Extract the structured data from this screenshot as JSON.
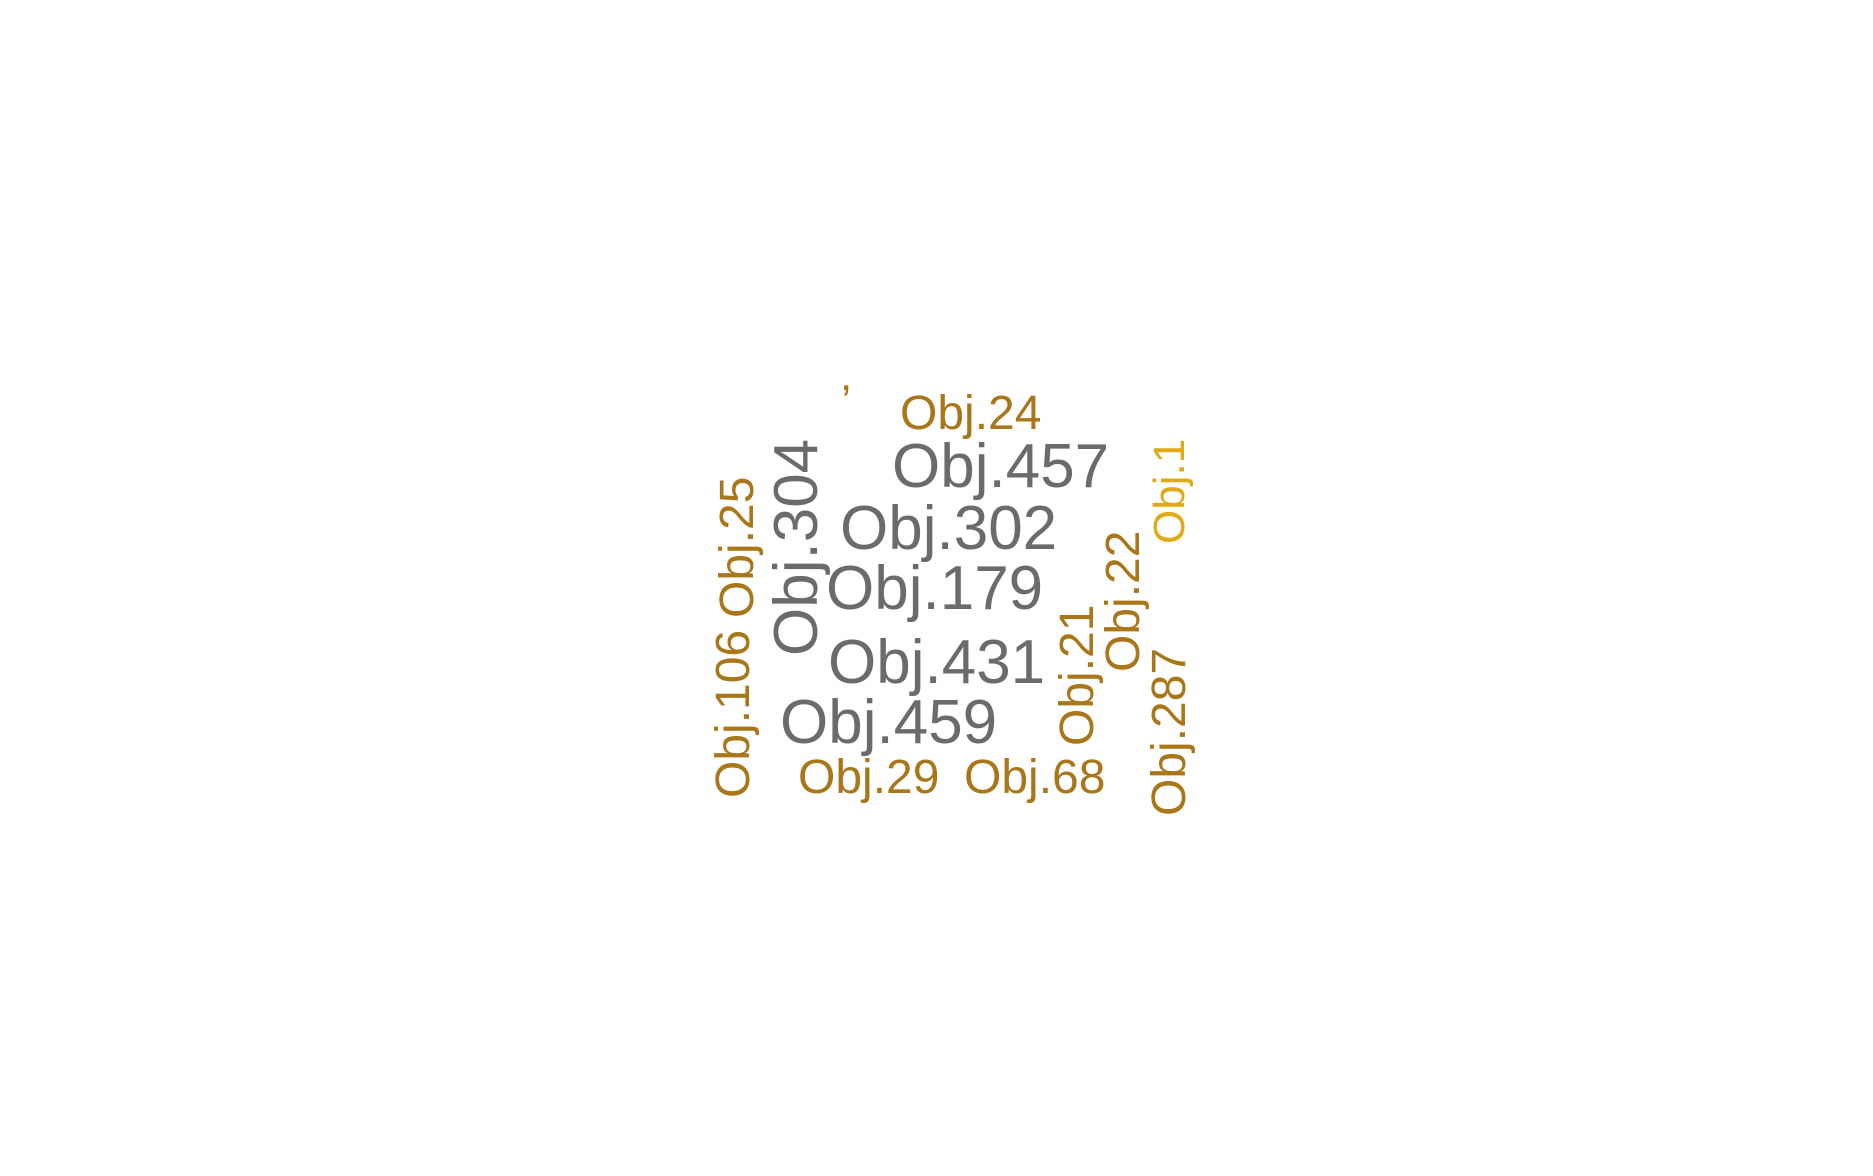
{
  "cloud": {
    "palette": {
      "gray": "#6b6b6b",
      "gold": "#a9761a",
      "amber": "#e0aa14"
    },
    "words": [
      {
        "id": "obj-24",
        "text": "Obj.24",
        "color": "gold"
      },
      {
        "id": "obj-457",
        "text": "Obj.457",
        "color": "gray"
      },
      {
        "id": "obj-302",
        "text": "Obj.302",
        "color": "gray"
      },
      {
        "id": "obj-179",
        "text": "Obj.179",
        "color": "gray"
      },
      {
        "id": "obj-431",
        "text": "Obj.431",
        "color": "gray"
      },
      {
        "id": "obj-459",
        "text": "Obj.459",
        "color": "gray"
      },
      {
        "id": "obj-29",
        "text": "Obj.29",
        "color": "gold"
      },
      {
        "id": "obj-68",
        "text": "Obj.68",
        "color": "gold"
      },
      {
        "id": "obj-304",
        "text": "Obj.304",
        "color": "gray"
      },
      {
        "id": "obj-25",
        "text": "Obj.25",
        "color": "gold"
      },
      {
        "id": "obj-106",
        "text": "Obj.106",
        "color": "gold"
      },
      {
        "id": "obj-21",
        "text": "Obj.21",
        "color": "gold"
      },
      {
        "id": "obj-22",
        "text": "Obj.22",
        "color": "gold"
      },
      {
        "id": "obj-1",
        "text": "Obj.1",
        "color": "amber"
      },
      {
        "id": "obj-287",
        "text": "Obj.287",
        "color": "gold"
      }
    ]
  }
}
